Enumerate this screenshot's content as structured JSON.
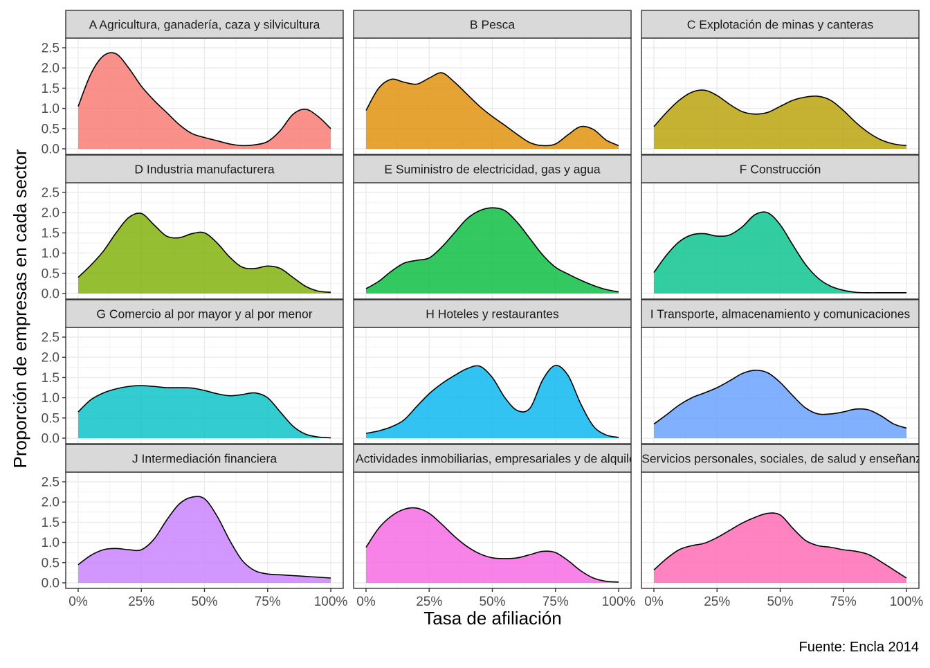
{
  "chart_data": {
    "type": "area",
    "ylabel": "Proporción de empresas en cada sector",
    "xlabel": "Tasa de afiliación",
    "caption": "Fuente: Encla 2014",
    "xlim": [
      0,
      1
    ],
    "ylim": [
      0,
      2.5
    ],
    "x_ticks": [
      0,
      0.25,
      0.5,
      0.75,
      1
    ],
    "x_tick_labels": [
      "0%",
      "25%",
      "50%",
      "75%",
      "100%"
    ],
    "y_ticks": [
      0,
      0.5,
      1,
      1.5,
      2,
      2.5
    ],
    "y_tick_labels": [
      "0.0",
      "0.5",
      "1.0",
      "1.5",
      "2.0",
      "2.5"
    ],
    "grid": true,
    "x": [
      0,
      0.05,
      0.1,
      0.15,
      0.2,
      0.25,
      0.3,
      0.35,
      0.4,
      0.45,
      0.5,
      0.55,
      0.6,
      0.65,
      0.7,
      0.75,
      0.8,
      0.85,
      0.9,
      0.95,
      1
    ],
    "panels": [
      {
        "title": "A Agricultura, ganadería, caza y silvicultura",
        "color": "#F8766D",
        "values": [
          1.05,
          1.85,
          2.3,
          2.35,
          2.0,
          1.55,
          1.2,
          0.9,
          0.6,
          0.38,
          0.28,
          0.2,
          0.12,
          0.08,
          0.1,
          0.18,
          0.45,
          0.85,
          0.98,
          0.8,
          0.5
        ]
      },
      {
        "title": "B Pesca",
        "color": "#DE8C00",
        "values": [
          0.95,
          1.5,
          1.72,
          1.65,
          1.6,
          1.75,
          1.88,
          1.65,
          1.35,
          1.05,
          0.8,
          0.58,
          0.35,
          0.15,
          0.08,
          0.12,
          0.35,
          0.55,
          0.48,
          0.22,
          0.08
        ]
      },
      {
        "title": "C Explotación de minas y canteras",
        "color": "#B79F00",
        "values": [
          0.55,
          0.9,
          1.2,
          1.4,
          1.45,
          1.32,
          1.1,
          0.92,
          0.86,
          0.9,
          1.05,
          1.2,
          1.28,
          1.3,
          1.2,
          0.95,
          0.65,
          0.4,
          0.22,
          0.12,
          0.08
        ]
      },
      {
        "title": "D Industria manufacturera",
        "color": "#7CAE00",
        "values": [
          0.4,
          0.7,
          1.05,
          1.5,
          1.88,
          1.98,
          1.7,
          1.42,
          1.38,
          1.48,
          1.5,
          1.25,
          0.9,
          0.65,
          0.62,
          0.68,
          0.62,
          0.4,
          0.18,
          0.06,
          0.03
        ]
      },
      {
        "title": "E Suministro de electricidad, gas y agua",
        "color": "#00BA38",
        "values": [
          0.12,
          0.3,
          0.55,
          0.75,
          0.82,
          0.88,
          1.15,
          1.5,
          1.85,
          2.05,
          2.12,
          2.05,
          1.75,
          1.35,
          0.95,
          0.65,
          0.48,
          0.33,
          0.2,
          0.1,
          0.04
        ]
      },
      {
        "title": "F Construcción",
        "color": "#00C08B",
        "values": [
          0.52,
          0.95,
          1.28,
          1.45,
          1.48,
          1.42,
          1.45,
          1.65,
          1.95,
          2.0,
          1.7,
          1.2,
          0.72,
          0.38,
          0.18,
          0.08,
          0.03,
          0.02,
          0.02,
          0.02,
          0.02
        ]
      },
      {
        "title": "G Comercio al por mayor y al por menor",
        "color": "#00BFC4",
        "values": [
          0.65,
          0.95,
          1.12,
          1.22,
          1.28,
          1.3,
          1.28,
          1.25,
          1.25,
          1.24,
          1.18,
          1.1,
          1.05,
          1.08,
          1.12,
          1.0,
          0.65,
          0.3,
          0.1,
          0.03,
          0.01
        ]
      },
      {
        "title": "H Hoteles y restaurantes",
        "color": "#00B4F0",
        "values": [
          0.12,
          0.18,
          0.28,
          0.45,
          0.78,
          1.1,
          1.35,
          1.55,
          1.72,
          1.78,
          1.5,
          1.0,
          0.68,
          0.75,
          1.45,
          1.8,
          1.55,
          0.85,
          0.3,
          0.08,
          0.02
        ]
      },
      {
        "title": "I Transporte, almacenamiento y comunicaciones",
        "color": "#619CFF",
        "values": [
          0.35,
          0.58,
          0.82,
          1.0,
          1.12,
          1.25,
          1.42,
          1.6,
          1.68,
          1.62,
          1.38,
          1.05,
          0.75,
          0.6,
          0.6,
          0.65,
          0.72,
          0.7,
          0.55,
          0.35,
          0.25
        ]
      },
      {
        "title": "J Intermediación financiera",
        "color": "#C77CFF",
        "values": [
          0.45,
          0.68,
          0.82,
          0.85,
          0.82,
          0.82,
          1.08,
          1.55,
          1.95,
          2.12,
          2.08,
          1.65,
          1.05,
          0.55,
          0.3,
          0.22,
          0.2,
          0.18,
          0.16,
          0.14,
          0.12
        ]
      },
      {
        "title": "K Actividades inmobiliarias, empresariales y de alquiler",
        "color": "#F564E3",
        "values": [
          0.88,
          1.35,
          1.65,
          1.82,
          1.85,
          1.72,
          1.45,
          1.15,
          0.9,
          0.72,
          0.62,
          0.6,
          0.62,
          0.7,
          0.78,
          0.75,
          0.55,
          0.3,
          0.12,
          0.04,
          0.02
        ]
      },
      {
        "title": "L Servicios personales, sociales, de salud y enseñanza",
        "color": "#FF64B0",
        "values": [
          0.32,
          0.6,
          0.82,
          0.92,
          0.98,
          1.12,
          1.3,
          1.48,
          1.62,
          1.72,
          1.68,
          1.35,
          1.05,
          0.92,
          0.88,
          0.82,
          0.78,
          0.7,
          0.52,
          0.32,
          0.12
        ]
      }
    ]
  }
}
